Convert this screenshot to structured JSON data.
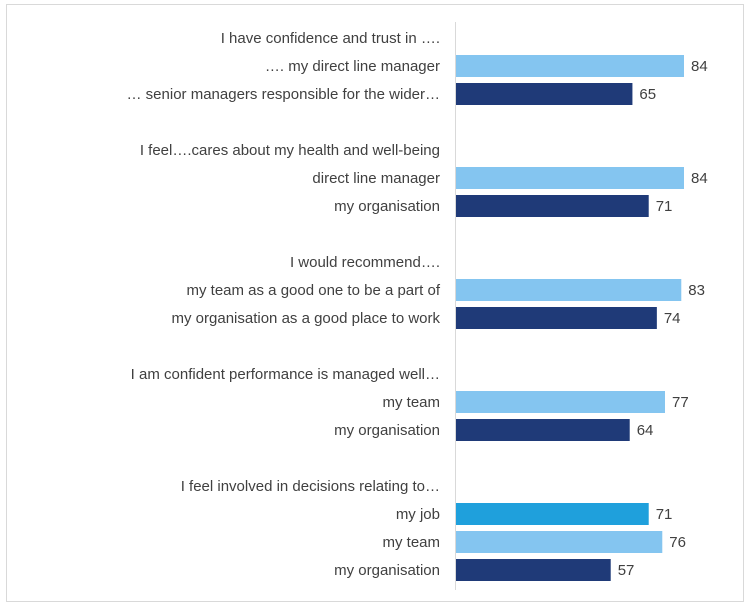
{
  "chart_data": {
    "type": "bar",
    "orientation": "horizontal",
    "xlim": [
      0,
      100
    ],
    "grid": false,
    "legend": "none",
    "colors": {
      "light": "#84c5f0",
      "dark": "#1f3a78",
      "mid": "#1fa0dc"
    },
    "rows": [
      {
        "kind": "header",
        "label": "I have confidence and trust in …."
      },
      {
        "kind": "bar",
        "label": "…. my direct line manager",
        "value": 84,
        "color": "light"
      },
      {
        "kind": "bar",
        "label": "… senior managers responsible for the wider…",
        "value": 65,
        "color": "dark"
      },
      {
        "kind": "gap"
      },
      {
        "kind": "header",
        "label": "I feel….cares about my health and well-being"
      },
      {
        "kind": "bar",
        "label": "direct line manager",
        "value": 84,
        "color": "light"
      },
      {
        "kind": "bar",
        "label": "my organisation",
        "value": 71,
        "color": "dark"
      },
      {
        "kind": "gap"
      },
      {
        "kind": "header",
        "label": "I would recommend…."
      },
      {
        "kind": "bar",
        "label": "my team as a good one to be a part of",
        "value": 83,
        "color": "light"
      },
      {
        "kind": "bar",
        "label": "my organisation as a good place to work",
        "value": 74,
        "color": "dark"
      },
      {
        "kind": "gap"
      },
      {
        "kind": "header",
        "label": "I am confident performance is managed well…"
      },
      {
        "kind": "bar",
        "label": "my team",
        "value": 77,
        "color": "light"
      },
      {
        "kind": "bar",
        "label": "my organisation",
        "value": 64,
        "color": "dark"
      },
      {
        "kind": "gap"
      },
      {
        "kind": "header",
        "label": "I feel involved in decisions relating to…"
      },
      {
        "kind": "bar",
        "label": "my job",
        "value": 71,
        "color": "mid"
      },
      {
        "kind": "bar",
        "label": "my team",
        "value": 76,
        "color": "light"
      },
      {
        "kind": "bar",
        "label": "my organisation",
        "value": 57,
        "color": "dark"
      }
    ]
  }
}
